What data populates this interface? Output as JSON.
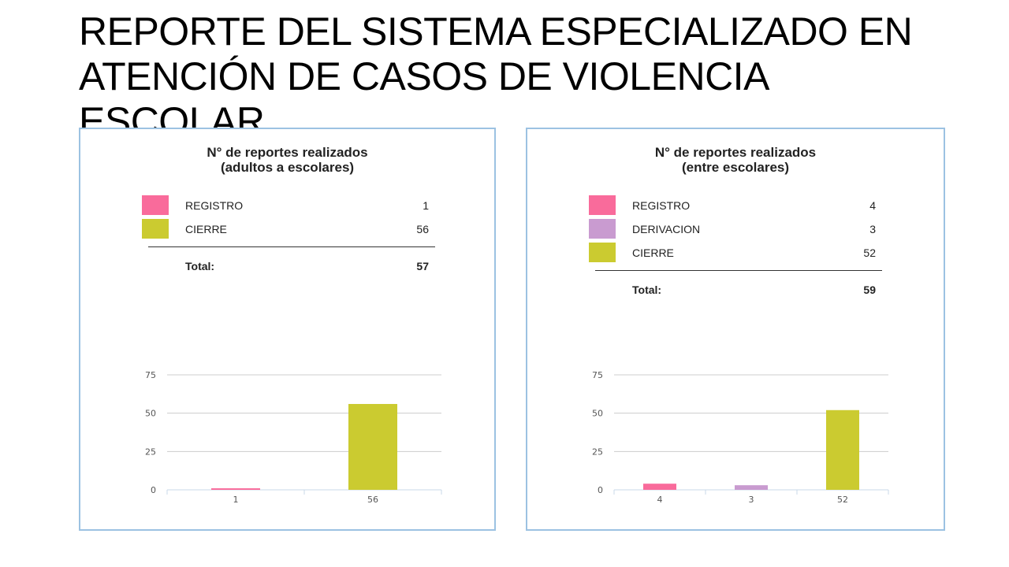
{
  "slide": {
    "title": "REPORTE DEL SISTEMA ESPECIALIZADO EN ATENCIÓN DE CASOS DE VIOLENCIA ESCOLAR"
  },
  "colors": {
    "registro": "#f96b9b",
    "derivacion": "#c99bd0",
    "cierre": "#cbcb30",
    "panel_border": "#9cc2e2"
  },
  "chart_data": [
    {
      "type": "bar",
      "title_lines": [
        "N° de reportes realizados",
        "(adultos a escolares)"
      ],
      "legend": [
        {
          "label": "REGISTRO",
          "value": "1"
        },
        {
          "label": "CIERRE",
          "value": "56"
        }
      ],
      "total_label": "Total:",
      "total_value": "57",
      "categories": [
        "1",
        "56"
      ],
      "values": [
        1,
        56
      ],
      "ylim": [
        0,
        75
      ],
      "yticks": [
        0,
        25,
        50,
        75
      ],
      "grid": true
    },
    {
      "type": "bar",
      "title_lines": [
        "N° de reportes realizados",
        "(entre escolares)"
      ],
      "legend": [
        {
          "label": "REGISTRO",
          "value": "4"
        },
        {
          "label": "DERIVACION",
          "value": "3"
        },
        {
          "label": "CIERRE",
          "value": "52"
        }
      ],
      "total_label": "Total:",
      "total_value": "59",
      "categories": [
        "4",
        "3",
        "52"
      ],
      "values": [
        4,
        3,
        52
      ],
      "ylim": [
        0,
        75
      ],
      "yticks": [
        0,
        25,
        50,
        75
      ],
      "grid": true
    }
  ]
}
